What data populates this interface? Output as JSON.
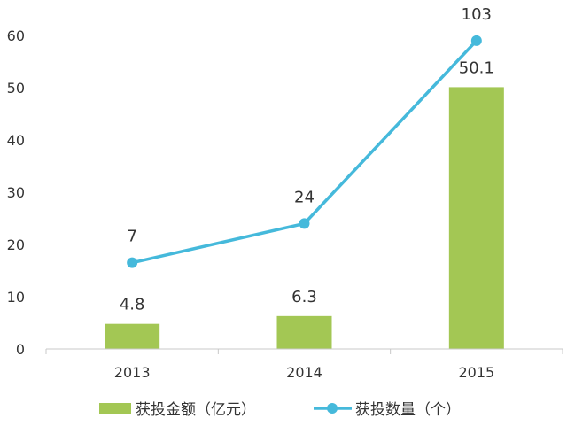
{
  "chart_data": {
    "type": "bar",
    "categories": [
      "2013",
      "2014",
      "2015"
    ],
    "series": [
      {
        "name": "获投金额（亿元）",
        "type": "bar",
        "values": [
          4.8,
          6.3,
          50.1
        ],
        "labels": [
          "4.8",
          "6.3",
          "50.1"
        ],
        "color": "#a3c754"
      },
      {
        "name": "获投数量（个）",
        "type": "line",
        "values": [
          7,
          24,
          103
        ],
        "labels": [
          "7",
          "24",
          "103"
        ],
        "plotted_on_left_axis": [
          16.5,
          24,
          59
        ],
        "color": "#45b9db"
      }
    ],
    "yticks": [
      0,
      10,
      20,
      30,
      40,
      50,
      60
    ],
    "ylim": [
      0,
      60
    ],
    "grid": false,
    "legend_position": "bottom"
  }
}
